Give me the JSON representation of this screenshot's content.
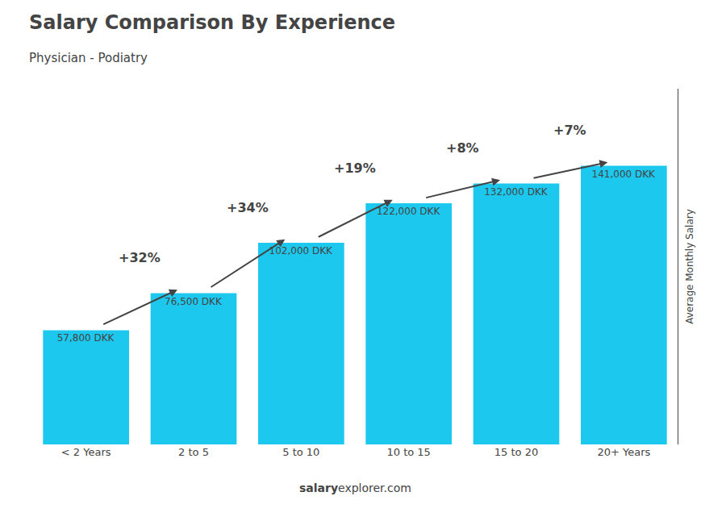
{
  "chart_data": {
    "type": "bar",
    "title": "Salary Comparison By Experience",
    "subtitle": "Physician - Podiatry",
    "ylabel": "Average Monthly Salary",
    "footer": [
      "salary",
      "explorer.com"
    ],
    "categories": [
      "< 2 Years",
      "2 to 5",
      "5 to 10",
      "10 to 15",
      "15 to 20",
      "20+ Years"
    ],
    "values": [
      57800,
      76500,
      102000,
      122000,
      132000,
      141000
    ],
    "value_labels": [
      "57,800 DKK",
      "76,500 DKK",
      "102,000 DKK",
      "122,000 DKK",
      "132,000 DKK",
      "141,000 DKK"
    ],
    "annotations": [
      "+32%",
      "+34%",
      "+19%",
      "+8%",
      "+7%"
    ],
    "color": "#1CC8EE",
    "ylim": [
      0,
      180000
    ],
    "data_labels": true,
    "tick_labels": "x",
    "grid": false
  }
}
